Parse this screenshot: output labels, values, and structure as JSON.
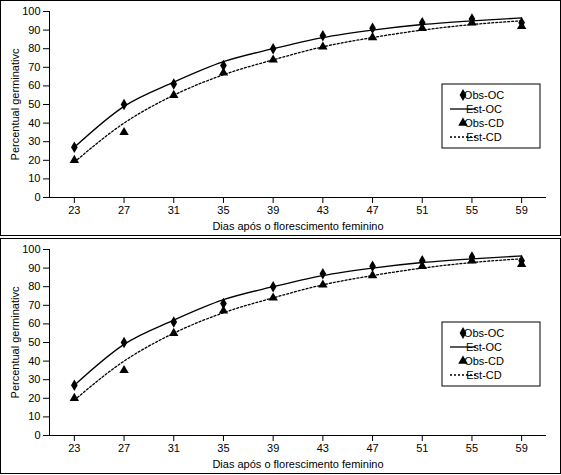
{
  "chart_data": [
    {
      "type": "line",
      "x_label": "Dias após o florescimento feminino",
      "y_label": "Percentual germinativc",
      "x": [
        23,
        27,
        31,
        35,
        39,
        43,
        47,
        51,
        55,
        59
      ],
      "xlim": [
        21,
        61
      ],
      "xticks": [
        23,
        27,
        31,
        35,
        39,
        43,
        47,
        51,
        55,
        59
      ],
      "ylim": [
        0,
        100
      ],
      "yticks": [
        0,
        10,
        20,
        30,
        40,
        50,
        60,
        70,
        80,
        90,
        100
      ],
      "grid": false,
      "legend": "right",
      "series": [
        {
          "name": "Obs-OC",
          "type": "scatter",
          "marker": "diamond",
          "color": "#000000",
          "values": [
            27,
            50,
            61,
            71,
            80,
            87,
            91,
            94,
            96,
            94
          ]
        },
        {
          "name": "Est-OC",
          "type": "line",
          "line_style": "solid",
          "color": "#000000",
          "values": [
            27,
            49,
            62,
            73,
            80,
            86,
            90,
            93,
            95,
            96.5
          ]
        },
        {
          "name": "Obs-CD",
          "type": "scatter",
          "marker": "triangle",
          "color": "#000000",
          "values": [
            20,
            35,
            55,
            67,
            74,
            81,
            86,
            91,
            94,
            92
          ]
        },
        {
          "name": "Est-CD",
          "type": "line",
          "line_style": "dotted",
          "color": "#000000",
          "values": [
            19,
            40,
            55,
            66,
            74,
            81,
            86,
            90,
            93,
            95
          ]
        }
      ]
    },
    {
      "type": "line",
      "x_label": "Dias após o florescimento feminino",
      "y_label": "Percentual germinativc",
      "x": [
        23,
        27,
        31,
        35,
        39,
        43,
        47,
        51,
        55,
        59
      ],
      "xlim": [
        21,
        61
      ],
      "xticks": [
        23,
        27,
        31,
        35,
        39,
        43,
        47,
        51,
        55,
        59
      ],
      "ylim": [
        0,
        100
      ],
      "yticks": [
        0,
        10,
        20,
        30,
        40,
        50,
        60,
        70,
        80,
        90,
        100
      ],
      "grid": false,
      "legend": "right",
      "series": [
        {
          "name": "Obs-OC",
          "type": "scatter",
          "marker": "diamond",
          "color": "#000000",
          "values": [
            27,
            50,
            61,
            71,
            80,
            87,
            91,
            94,
            96,
            94
          ]
        },
        {
          "name": "Est-OC",
          "type": "line",
          "line_style": "solid",
          "color": "#000000",
          "values": [
            27,
            49,
            62,
            73,
            80,
            86,
            90,
            93,
            95,
            96.5
          ]
        },
        {
          "name": "Obs-CD",
          "type": "scatter",
          "marker": "triangle",
          "color": "#000000",
          "values": [
            20,
            35,
            55,
            67,
            74,
            81,
            86,
            91,
            94,
            92
          ]
        },
        {
          "name": "Est-CD",
          "type": "line",
          "line_style": "dotted",
          "color": "#000000",
          "values": [
            19,
            40,
            55,
            66,
            74,
            81,
            86,
            90,
            93,
            95
          ]
        }
      ]
    }
  ]
}
